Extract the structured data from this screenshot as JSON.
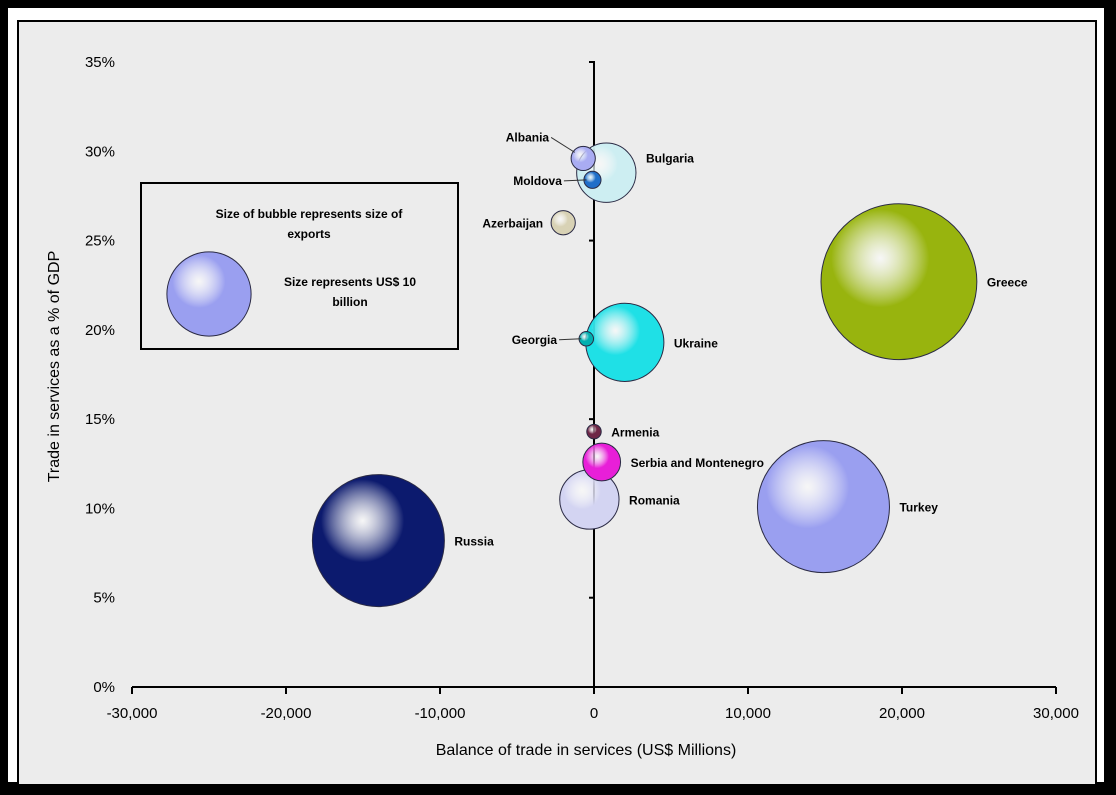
{
  "chart_data": {
    "type": "scatter",
    "subtype": "bubble",
    "xlabel": "Balance of trade in services (US$ Millions)",
    "ylabel": "Trade in services as a % of GDP",
    "xlim": [
      -30000,
      30000
    ],
    "ylim": [
      0,
      35
    ],
    "x_ticks": [
      "-30,000",
      "-20,000",
      "-10,000",
      "0",
      "10,000",
      "20,000",
      "30,000"
    ],
    "x_tick_values": [
      -30000,
      -20000,
      -10000,
      0,
      10000,
      20000,
      30000
    ],
    "y_ticks": [
      "0%",
      "5%",
      "10%",
      "15%",
      "20%",
      "25%",
      "30%",
      "35%"
    ],
    "y_tick_values": [
      0,
      5,
      10,
      15,
      20,
      25,
      30,
      35
    ],
    "grid": false,
    "legend": {
      "position": "left",
      "line1": "Size of bubble represents size of",
      "line2": "exports",
      "line3": "Size represents US$ 10",
      "line4": "billion",
      "reference_size": 10000,
      "color": "#9a9ff0"
    },
    "points": [
      {
        "name": "Albania",
        "x": -700,
        "y": 29.6,
        "size": 700,
        "color": "#a9acf2"
      },
      {
        "name": "Bulgaria",
        "x": 800,
        "y": 28.8,
        "size": 4200,
        "color": "#cdeef2"
      },
      {
        "name": "Moldova",
        "x": -100,
        "y": 28.4,
        "size": 350,
        "color": "#1f6fc9"
      },
      {
        "name": "Azerbaijan",
        "x": -2000,
        "y": 26,
        "size": 700,
        "color": "#d8d2b5"
      },
      {
        "name": "Greece",
        "x": 19800,
        "y": 22.7,
        "size": 29000,
        "color": "#98b40e"
      },
      {
        "name": "Georgia",
        "x": -500,
        "y": 19.5,
        "size": 250,
        "color": "#00b0b0"
      },
      {
        "name": "Ukraine",
        "x": 2000,
        "y": 19.3,
        "size": 7300,
        "color": "#1fe0e6"
      },
      {
        "name": "Armenia",
        "x": 0,
        "y": 14.3,
        "size": 250,
        "color": "#6e2747"
      },
      {
        "name": "Serbia and Montenegro",
        "x": 500,
        "y": 12.6,
        "size": 1700,
        "color": "#e81fd8"
      },
      {
        "name": "Romania",
        "x": -300,
        "y": 10.5,
        "size": 4200,
        "color": "#d3d4f2"
      },
      {
        "name": "Turkey",
        "x": 14900,
        "y": 10.1,
        "size": 20800,
        "color": "#9a9ff0"
      },
      {
        "name": "Russia",
        "x": -14000,
        "y": 8.2,
        "size": 20800,
        "color": "#0c1a6e"
      }
    ]
  }
}
